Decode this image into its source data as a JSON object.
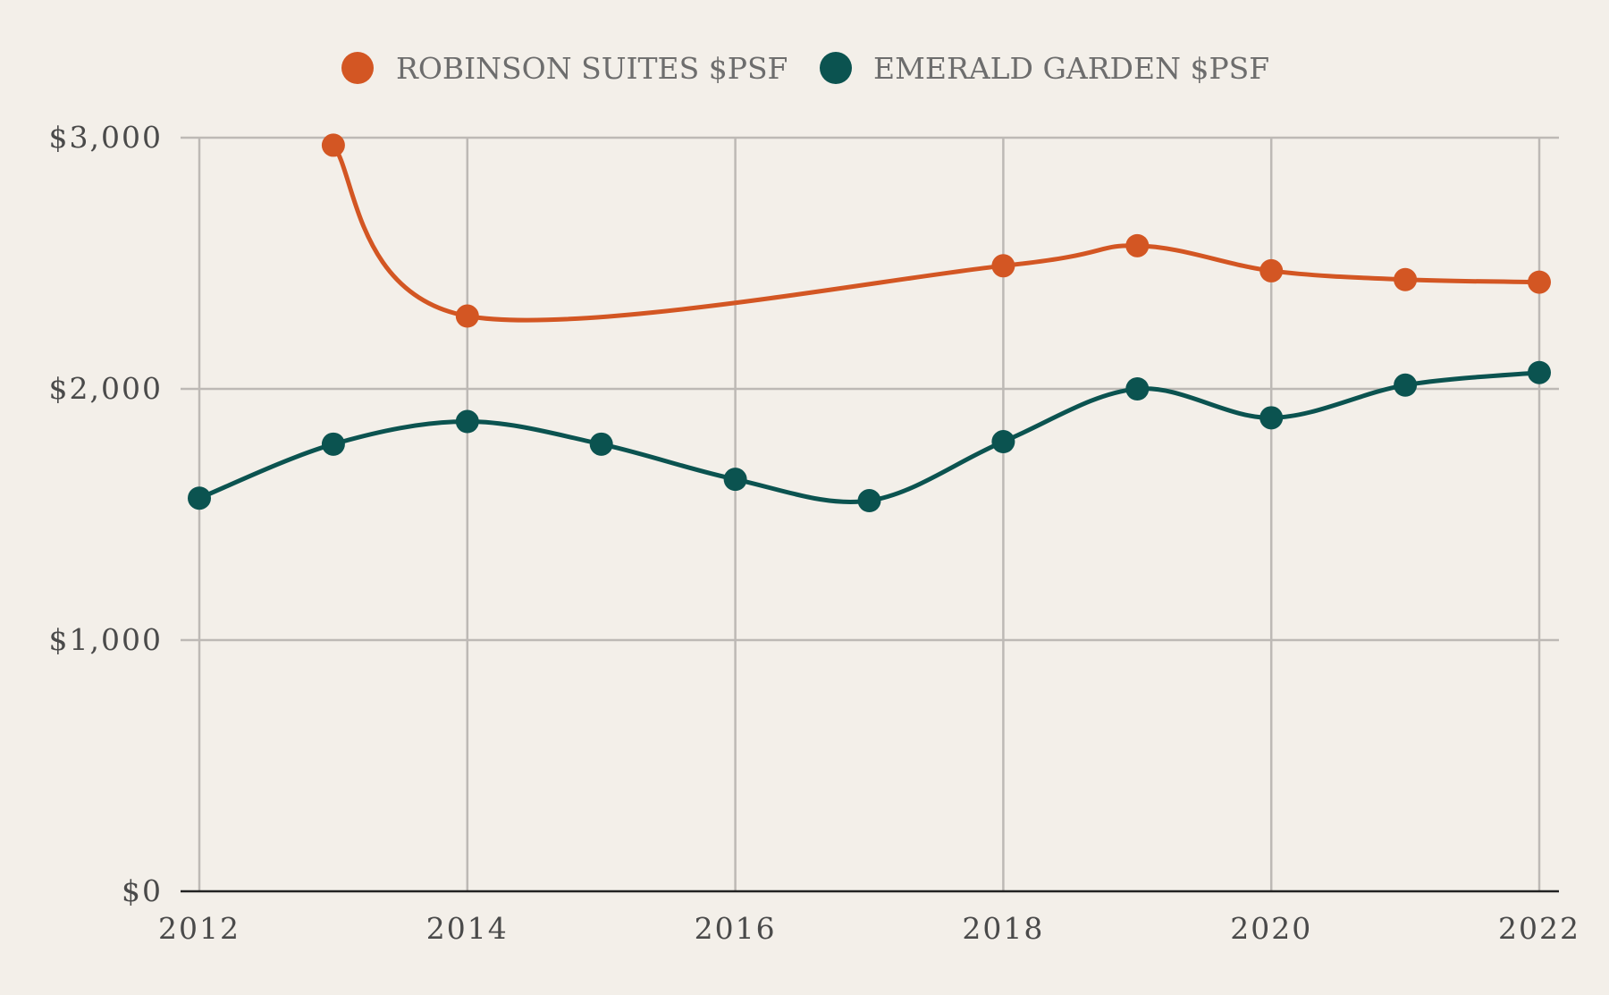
{
  "chart_data": {
    "type": "line",
    "title": "",
    "xlabel": "",
    "ylabel": "",
    "xlim": [
      2012,
      2022
    ],
    "ylim": [
      0,
      3000
    ],
    "x_ticks": [
      2012,
      2014,
      2016,
      2018,
      2020,
      2022
    ],
    "x_tick_labels": [
      "2012",
      "2014",
      "2016",
      "2018",
      "2020",
      "2022"
    ],
    "y_ticks": [
      0,
      1000,
      2000,
      3000
    ],
    "y_tick_labels": [
      "$0",
      "$1,000",
      "$2,000",
      "$3,000"
    ],
    "grid": true,
    "legend_position": "top-center",
    "series": [
      {
        "name": "ROBINSON SUITES $PSF",
        "color": "#d35623",
        "points": [
          {
            "x": 2013,
            "y": 2970
          },
          {
            "x": 2014,
            "y": 2290
          },
          {
            "x": 2018,
            "y": 2490
          },
          {
            "x": 2019,
            "y": 2570
          },
          {
            "x": 2020,
            "y": 2470
          },
          {
            "x": 2021,
            "y": 2435
          },
          {
            "x": 2022,
            "y": 2425
          }
        ]
      },
      {
        "name": "EMERALD GARDEN $PSF",
        "color": "#0b5350",
        "points": [
          {
            "x": 2012,
            "y": 1565
          },
          {
            "x": 2013,
            "y": 1780
          },
          {
            "x": 2014,
            "y": 1870
          },
          {
            "x": 2015,
            "y": 1780
          },
          {
            "x": 2016,
            "y": 1640
          },
          {
            "x": 2017,
            "y": 1555
          },
          {
            "x": 2018,
            "y": 1790
          },
          {
            "x": 2019,
            "y": 2000
          },
          {
            "x": 2020,
            "y": 1885
          },
          {
            "x": 2021,
            "y": 2015
          },
          {
            "x": 2022,
            "y": 2065
          }
        ]
      }
    ]
  }
}
